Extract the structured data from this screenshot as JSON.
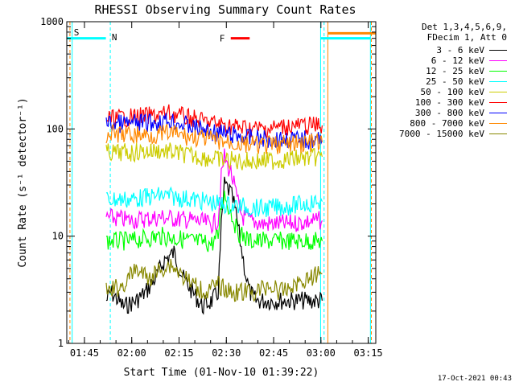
{
  "chart_data": {
    "type": "line",
    "title": "RHESSI Observing Summary Count Rates",
    "xlabel": "Start Time (01-Nov-10 01:39:22)",
    "ylabel": "Count Rate (s⁻¹ detector⁻¹)",
    "x_unit": "minutes since 01:39:22",
    "xlim": [
      0,
      98
    ],
    "ylim": [
      1,
      1000
    ],
    "yscale": "log",
    "x_ticks": [
      {
        "label": "01:45",
        "value": 5.6
      },
      {
        "label": "02:00",
        "value": 20.6
      },
      {
        "label": "02:15",
        "value": 35.6
      },
      {
        "label": "02:30",
        "value": 50.6
      },
      {
        "label": "02:45",
        "value": 65.6
      },
      {
        "label": "03:00",
        "value": 80.6
      },
      {
        "label": "03:15",
        "value": 95.6
      }
    ],
    "y_ticks": [
      {
        "label": "1",
        "value": 1
      },
      {
        "label": "10",
        "value": 10
      },
      {
        "label": "100",
        "value": 100
      },
      {
        "label": "1000",
        "value": 1000
      }
    ],
    "legend_header": [
      "Det 1,3,4,5,6,9,",
      "FDecim 1, Att 0"
    ],
    "series": [
      {
        "name": "3 - 6 keV",
        "color": "#000000",
        "x": [
          12.5,
          14,
          18,
          22,
          25,
          28,
          31,
          34,
          37,
          40,
          43,
          46,
          48,
          49,
          50,
          51,
          52,
          53,
          54,
          55,
          56,
          57,
          58,
          60,
          63,
          66,
          70,
          74,
          78,
          81
        ],
        "y": [
          2.5,
          3,
          2.2,
          2.5,
          3,
          4,
          6,
          7,
          4,
          3,
          2.2,
          2.5,
          3,
          12,
          30,
          28,
          25,
          20,
          14,
          9,
          6,
          4,
          3,
          2.5,
          2.5,
          2.5,
          2.5,
          2.5,
          2.5,
          2.5
        ]
      },
      {
        "name": "6 - 12 keV",
        "color": "#ff00ff",
        "x": [
          12.5,
          20,
          30,
          40,
          46,
          48,
          49,
          50,
          51,
          52,
          53,
          54,
          55,
          56,
          58,
          62,
          70,
          80,
          81
        ],
        "y": [
          15,
          14,
          15,
          14,
          13,
          14,
          35,
          55,
          45,
          40,
          30,
          22,
          17,
          15,
          14,
          13,
          13,
          14,
          14
        ]
      },
      {
        "name": "12 - 25 keV",
        "color": "#00ff00",
        "x": [
          12.5,
          20,
          30,
          40,
          46,
          48,
          49,
          50,
          51,
          52,
          53,
          54,
          58,
          65,
          75,
          81
        ],
        "y": [
          9,
          9,
          10,
          9,
          8.5,
          10,
          20,
          25,
          20,
          17,
          14,
          11,
          9,
          9,
          9,
          9
        ]
      },
      {
        "name": "25 - 50 keV",
        "color": "#00ffff",
        "x": [
          12.5,
          20,
          30,
          40,
          48,
          55,
          62,
          70,
          81
        ],
        "y": [
          22,
          22,
          24,
          22,
          20,
          19,
          18,
          19,
          21
        ]
      },
      {
        "name": "50 - 100 keV",
        "color": "#cccc00",
        "x": [
          12.5,
          20,
          30,
          40,
          48,
          55,
          62,
          70,
          81
        ],
        "y": [
          60,
          60,
          63,
          56,
          52,
          50,
          50,
          52,
          55
        ]
      },
      {
        "name": "100 - 300 keV",
        "color": "#ff0000",
        "x": [
          12.5,
          20,
          28,
          33,
          38,
          45,
          55,
          62,
          70,
          81
        ],
        "y": [
          125,
          128,
          133,
          140,
          128,
          115,
          103,
          100,
          106,
          108
        ]
      },
      {
        "name": "300 - 800 keV",
        "color": "#0000ff",
        "x": [
          12.5,
          20,
          28,
          33,
          38,
          45,
          55,
          62,
          70,
          81
        ],
        "y": [
          112,
          112,
          115,
          120,
          108,
          95,
          85,
          80,
          80,
          78
        ]
      },
      {
        "name": "800 - 7000 keV",
        "color": "#ff8800",
        "x": [
          12.5,
          20,
          28,
          33,
          38,
          45,
          55,
          62,
          70,
          81
        ],
        "y": [
          90,
          88,
          88,
          92,
          85,
          80,
          72,
          70,
          72,
          75
        ]
      },
      {
        "name": "7000 - 15000 keV",
        "color": "#888800",
        "x": [
          12.5,
          18,
          22,
          26,
          30,
          33,
          36,
          40,
          44,
          48,
          52,
          56,
          60,
          64,
          68,
          72,
          76,
          81
        ],
        "y": [
          3,
          3.5,
          5,
          4,
          5,
          5.5,
          4.5,
          3.5,
          3,
          3.5,
          3,
          3,
          3,
          3.5,
          3,
          3.5,
          4,
          4.5
        ]
      }
    ],
    "markers": {
      "F": {
        "label": "F",
        "x_start": 52,
        "x_end": 58,
        "y": 700,
        "color": "#ff0000"
      },
      "S": {
        "label": "S",
        "x": 1.2,
        "color": "#ff8800"
      },
      "N": {
        "label": "N",
        "x": 13.5,
        "color": "#00ffff"
      }
    },
    "vertical_lines": [
      {
        "x": 1.0,
        "color": "#ff8800",
        "style": "dashed"
      },
      {
        "x": 1.7,
        "color": "#00ffff",
        "style": "solid"
      },
      {
        "x": 13.8,
        "color": "#00ffff",
        "style": "dashed"
      },
      {
        "x": 80.5,
        "color": "#00ffff",
        "style": "solid"
      },
      {
        "x": 81.6,
        "color": "#00ffff",
        "style": "dashed"
      },
      {
        "x": 82.8,
        "color": "#ff8800",
        "style": "solid"
      },
      {
        "x": 96.3,
        "color": "#00ffff",
        "style": "solid"
      },
      {
        "x": 96.6,
        "color": "#ff8800",
        "style": "dashed"
      }
    ],
    "status_bars": [
      {
        "x1": 0,
        "x2": 12.4,
        "y": 700,
        "color": "#00ffff"
      },
      {
        "x1": 80.5,
        "x2": 96.3,
        "y": 700,
        "color": "#00ffff"
      },
      {
        "x1": 82.8,
        "x2": 98,
        "y": 780,
        "color": "#ff8800"
      }
    ],
    "grid": false,
    "legend_position": "right"
  },
  "footer": {
    "date": "17-Oct-2021 00:43"
  }
}
